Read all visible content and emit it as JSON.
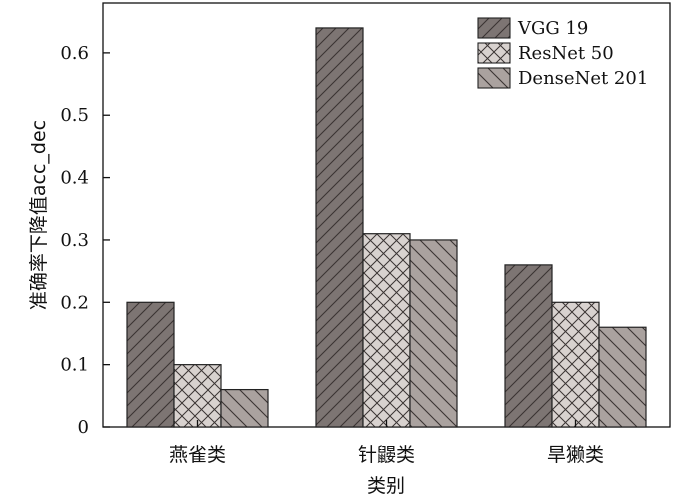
{
  "chart_data": {
    "type": "bar",
    "categories": [
      "燕雀类",
      "针鼹类",
      "旱獭类"
    ],
    "series": [
      {
        "name": "VGG 19",
        "values": [
          0.2,
          0.64,
          0.26
        ],
        "color": "#7d7573",
        "pattern": "diag-forward"
      },
      {
        "name": "ResNet 50",
        "values": [
          0.1,
          0.31,
          0.2
        ],
        "color": "#d8d2cf",
        "pattern": "crosshatch"
      },
      {
        "name": "DenseNet 201",
        "values": [
          0.06,
          0.3,
          0.16
        ],
        "color": "#aaa29f",
        "pattern": "diag-back"
      }
    ],
    "title": "",
    "xlabel": "类别",
    "ylabel": "准确率下降值acc_dec",
    "ylim": [
      0,
      0.68
    ],
    "yticks": [
      "0",
      "0.1",
      "0.2",
      "0.3",
      "0.4",
      "0.5",
      "0.6"
    ],
    "legend_position": "top-right",
    "grid": false
  }
}
